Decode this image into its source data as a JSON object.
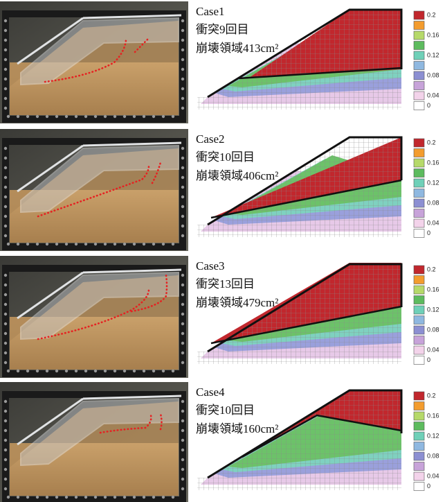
{
  "panels": [
    {
      "case": "Case1",
      "impact": "衝突9回目",
      "area": "崩壊領域413cm²"
    },
    {
      "case": "Case2",
      "impact": "衝突10回目",
      "area": "崩壊領域406cm²"
    },
    {
      "case": "Case3",
      "impact": "衝突13回目",
      "area": "崩壊領域479cm²"
    },
    {
      "case": "Case4",
      "impact": "衝突10回目",
      "area": "崩壊領域160cm²"
    }
  ],
  "colorbar_labels": [
    "0.2",
    "0.16",
    "0.12",
    "0.08",
    "0.04",
    "0"
  ]
}
